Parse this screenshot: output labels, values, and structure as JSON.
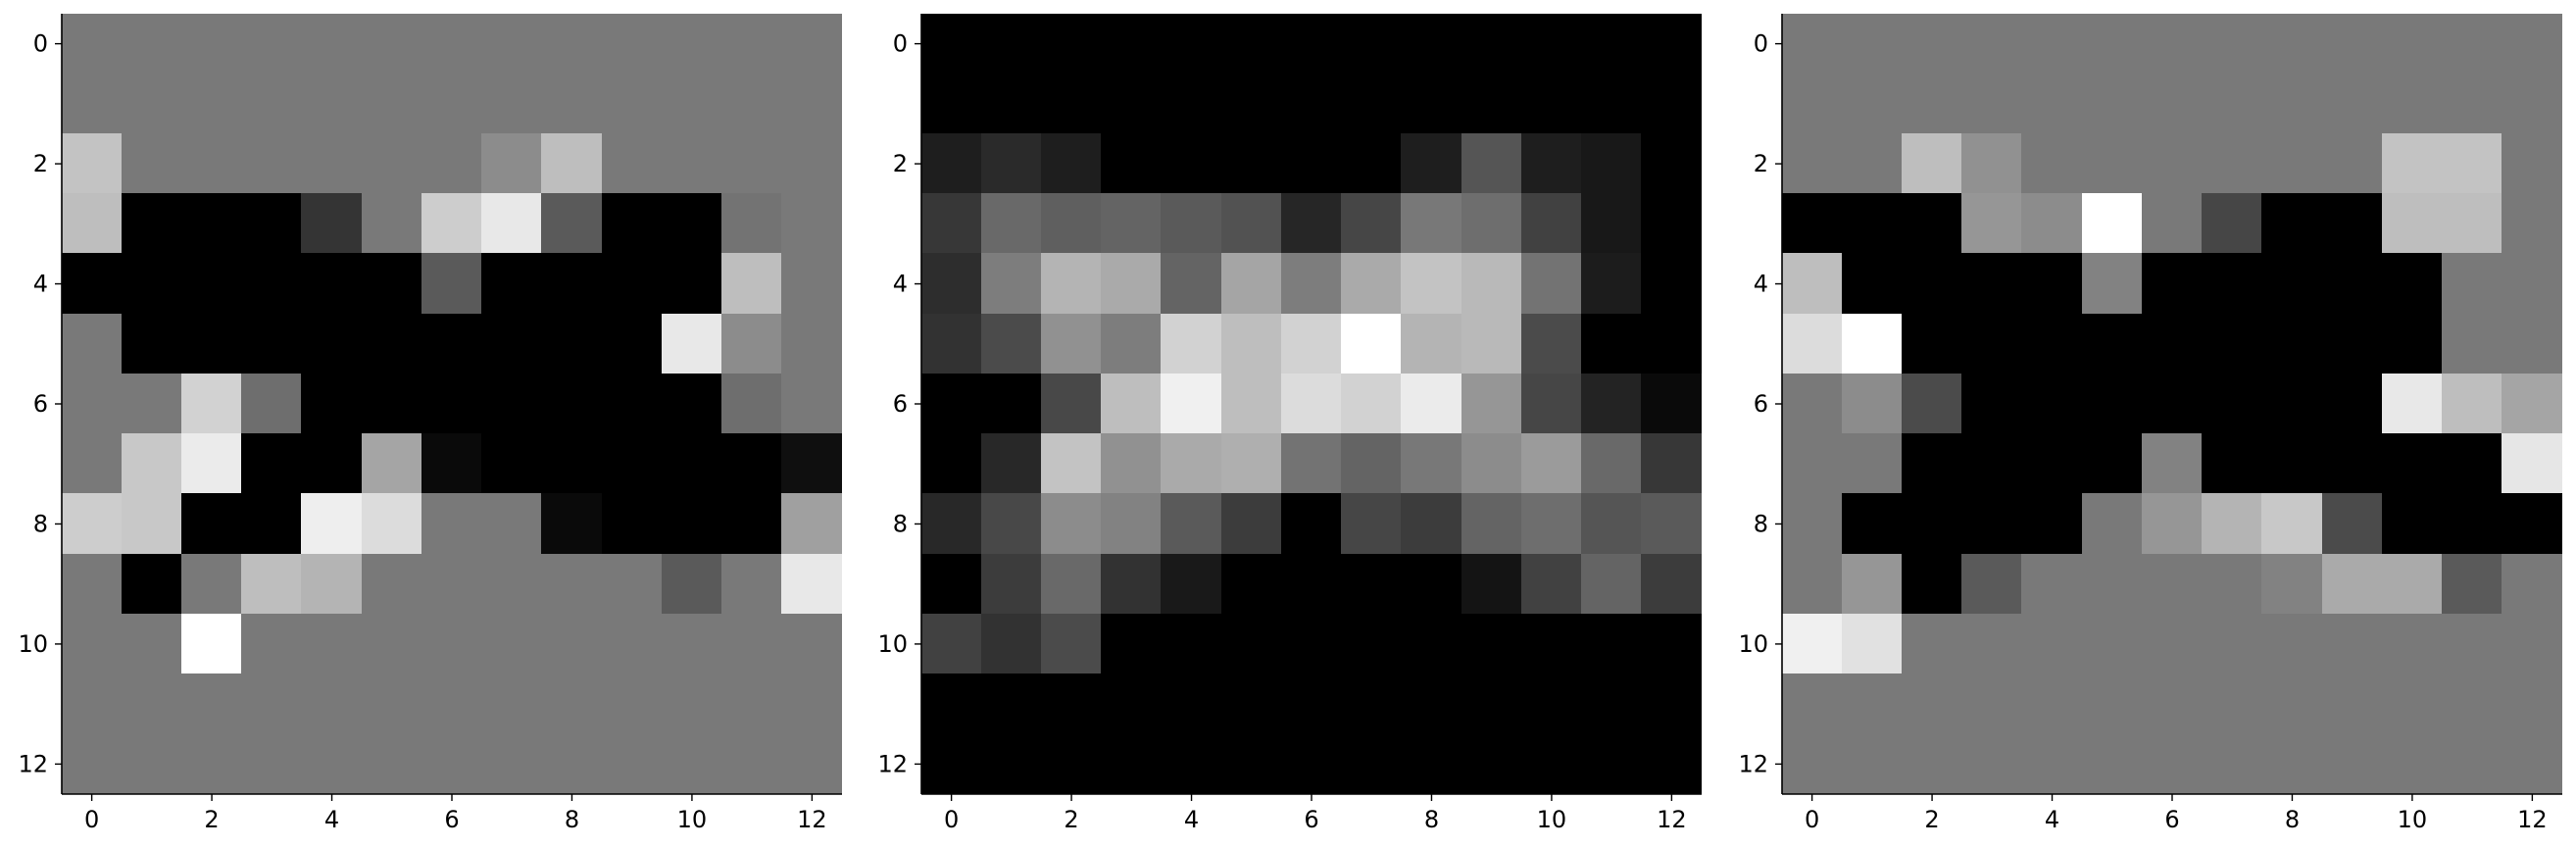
{
  "chart_data": [
    {
      "type": "heatmap",
      "colormap": "gray",
      "xticks": [
        "0",
        "2",
        "4",
        "6",
        "8",
        "10",
        "12"
      ],
      "yticks": [
        "0",
        "2",
        "4",
        "6",
        "8",
        "10",
        "12"
      ],
      "xlim": [
        -0.5,
        12.5
      ],
      "ylim": [
        12.5,
        -0.5
      ],
      "values": [
        [
          121,
          121,
          121,
          121,
          121,
          121,
          121,
          121,
          121,
          121,
          121,
          121,
          121
        ],
        [
          121,
          121,
          121,
          121,
          121,
          121,
          121,
          121,
          121,
          121,
          121,
          121,
          121
        ],
        [
          195,
          121,
          121,
          121,
          121,
          121,
          121,
          140,
          190,
          121,
          121,
          121,
          121
        ],
        [
          190,
          0,
          0,
          0,
          52,
          121,
          205,
          232,
          90,
          0,
          0,
          115,
          121
        ],
        [
          0,
          0,
          0,
          0,
          0,
          0,
          90,
          0,
          0,
          0,
          0,
          190,
          121
        ],
        [
          121,
          0,
          0,
          0,
          0,
          0,
          0,
          0,
          0,
          0,
          232,
          140,
          121
        ],
        [
          121,
          121,
          210,
          110,
          0,
          0,
          0,
          0,
          0,
          0,
          0,
          110,
          121
        ],
        [
          121,
          200,
          235,
          0,
          0,
          165,
          10,
          0,
          0,
          0,
          0,
          0,
          15
        ],
        [
          205,
          200,
          0,
          0,
          238,
          220,
          121,
          121,
          10,
          0,
          0,
          0,
          160
        ],
        [
          121,
          0,
          121,
          190,
          180,
          121,
          121,
          121,
          121,
          121,
          90,
          121,
          232
        ],
        [
          121,
          121,
          255,
          121,
          121,
          121,
          121,
          121,
          121,
          121,
          121,
          121,
          121
        ],
        [
          121,
          121,
          121,
          121,
          121,
          121,
          121,
          121,
          121,
          121,
          121,
          121,
          121
        ],
        [
          121,
          121,
          121,
          121,
          121,
          121,
          121,
          121,
          121,
          121,
          121,
          121,
          121
        ]
      ]
    },
    {
      "type": "heatmap",
      "colormap": "gray",
      "xticks": [
        "0",
        "2",
        "4",
        "6",
        "8",
        "10",
        "12"
      ],
      "yticks": [
        "0",
        "2",
        "4",
        "6",
        "8",
        "10",
        "12"
      ],
      "xlim": [
        -0.5,
        12.5
      ],
      "ylim": [
        12.5,
        -0.5
      ],
      "values": [
        [
          0,
          0,
          0,
          0,
          0,
          0,
          0,
          0,
          0,
          0,
          0,
          0,
          0
        ],
        [
          0,
          0,
          0,
          0,
          0,
          0,
          0,
          0,
          0,
          0,
          0,
          0,
          0
        ],
        [
          30,
          42,
          30,
          0,
          0,
          0,
          0,
          0,
          30,
          85,
          30,
          24,
          0
        ],
        [
          55,
          105,
          95,
          100,
          90,
          82,
          38,
          70,
          120,
          110,
          65,
          24,
          0
        ],
        [
          45,
          125,
          180,
          170,
          100,
          165,
          125,
          170,
          195,
          185,
          115,
          28,
          0
        ],
        [
          50,
          75,
          145,
          125,
          210,
          190,
          210,
          255,
          180,
          185,
          75,
          0,
          0
        ],
        [
          0,
          0,
          72,
          190,
          240,
          190,
          220,
          210,
          235,
          150,
          70,
          35,
          10
        ],
        [
          0,
          40,
          195,
          145,
          170,
          175,
          115,
          100,
          120,
          140,
          155,
          105,
          55
        ],
        [
          40,
          72,
          140,
          130,
          90,
          60,
          0,
          70,
          60,
          100,
          110,
          85,
          90
        ],
        [
          0,
          60,
          105,
          50,
          25,
          0,
          0,
          0,
          0,
          20,
          65,
          100,
          60
        ],
        [
          65,
          50,
          75,
          0,
          0,
          0,
          0,
          0,
          0,
          0,
          0,
          0,
          0
        ],
        [
          0,
          0,
          0,
          0,
          0,
          0,
          0,
          0,
          0,
          0,
          0,
          0,
          0
        ],
        [
          0,
          0,
          0,
          0,
          0,
          0,
          0,
          0,
          0,
          0,
          0,
          0,
          0
        ]
      ]
    },
    {
      "type": "heatmap",
      "colormap": "gray",
      "xticks": [
        "0",
        "2",
        "4",
        "6",
        "8",
        "10",
        "12"
      ],
      "yticks": [
        "0",
        "2",
        "4",
        "6",
        "8",
        "10",
        "12"
      ],
      "xlim": [
        -0.5,
        12.5
      ],
      "ylim": [
        12.5,
        -0.5
      ],
      "values": [
        [
          121,
          121,
          121,
          121,
          121,
          121,
          121,
          121,
          121,
          121,
          121,
          121,
          121
        ],
        [
          121,
          121,
          121,
          121,
          121,
          121,
          121,
          121,
          121,
          121,
          121,
          121,
          121
        ],
        [
          121,
          121,
          190,
          145,
          121,
          121,
          121,
          121,
          121,
          121,
          195,
          195,
          121
        ],
        [
          0,
          0,
          0,
          150,
          140,
          255,
          121,
          70,
          0,
          0,
          190,
          190,
          121
        ],
        [
          190,
          0,
          0,
          0,
          0,
          130,
          0,
          0,
          0,
          0,
          0,
          121,
          121
        ],
        [
          220,
          255,
          0,
          0,
          0,
          0,
          0,
          0,
          0,
          0,
          0,
          121,
          121
        ],
        [
          121,
          140,
          75,
          0,
          0,
          0,
          0,
          0,
          0,
          0,
          232,
          190,
          165
        ],
        [
          121,
          121,
          0,
          0,
          0,
          0,
          130,
          0,
          0,
          0,
          0,
          0,
          230
        ],
        [
          121,
          0,
          0,
          0,
          0,
          121,
          150,
          180,
          200,
          75,
          0,
          0,
          0
        ],
        [
          121,
          150,
          0,
          90,
          121,
          121,
          121,
          121,
          130,
          170,
          170,
          90,
          121
        ],
        [
          240,
          225,
          121,
          121,
          121,
          121,
          121,
          121,
          121,
          121,
          121,
          121,
          121
        ],
        [
          121,
          121,
          121,
          121,
          121,
          121,
          121,
          121,
          121,
          121,
          121,
          121,
          121
        ],
        [
          121,
          121,
          121,
          121,
          121,
          121,
          121,
          121,
          121,
          121,
          121,
          121,
          121
        ]
      ]
    }
  ]
}
